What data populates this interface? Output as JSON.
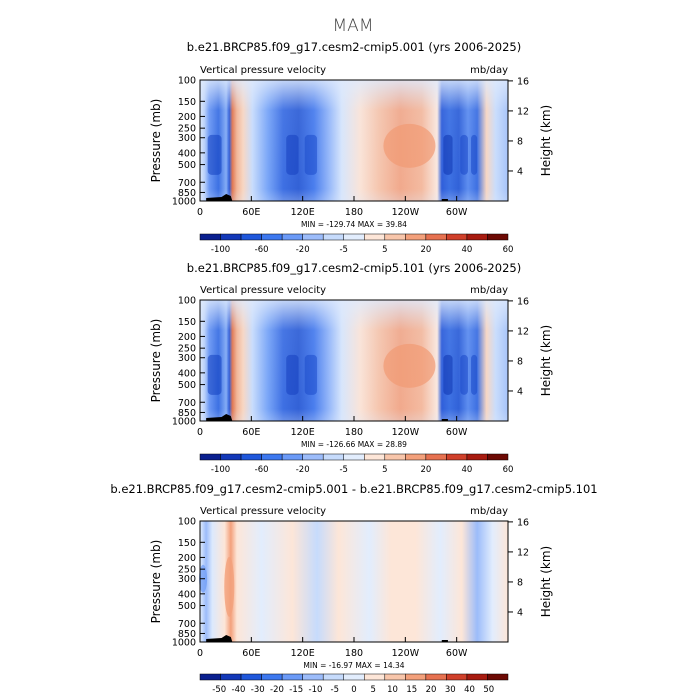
{
  "figure": {
    "title": "MAM"
  },
  "chart_data": [
    {
      "type": "heatmap",
      "title": "b.e21.BRCP85.f09_g17.cesm2-cmip5.001 (yrs 2006-2025)",
      "left_label": "Vertical pressure velocity",
      "right_label": "mb/day",
      "ylabel": "Pressure (mb)",
      "ylabel_right": "Height (km)",
      "x_ticks": [
        "0",
        "60E",
        "120E",
        "180",
        "120W",
        "60W"
      ],
      "y_ticks": [
        "100",
        "150",
        "200",
        "250",
        "300",
        "400",
        "500",
        "700",
        "850",
        "1000"
      ],
      "y_right_ticks": [
        "16",
        "12",
        "8",
        "4"
      ],
      "stats": "MIN = -129.74   MAX =  39.84",
      "colorbar_labels": [
        "-100",
        "-60",
        "-20",
        "-5",
        "5",
        "20",
        "40",
        "60"
      ],
      "colorbar_colors": [
        "#0a1f8f",
        "#1238b8",
        "#1f57db",
        "#3d78ef",
        "#6b9af7",
        "#9cbcfa",
        "#c6dbfc",
        "#e2edfd",
        "#fde6d8",
        "#f8c6ab",
        "#f3a07b",
        "#e67150",
        "#d0402a",
        "#a81b10",
        "#6d0904"
      ],
      "data_ranges": {
        "min": -129.74,
        "max": 39.84
      }
    },
    {
      "type": "heatmap",
      "title": "b.e21.BRCP85.f09_g17.cesm2-cmip5.101 (yrs 2006-2025)",
      "left_label": "Vertical pressure velocity",
      "right_label": "mb/day",
      "ylabel": "Pressure (mb)",
      "ylabel_right": "Height (km)",
      "x_ticks": [
        "0",
        "60E",
        "120E",
        "180",
        "120W",
        "60W"
      ],
      "y_ticks": [
        "100",
        "150",
        "200",
        "250",
        "300",
        "400",
        "500",
        "700",
        "850",
        "1000"
      ],
      "y_right_ticks": [
        "16",
        "12",
        "8",
        "4"
      ],
      "stats": "MIN = -126.66   MAX =  28.89",
      "colorbar_labels": [
        "-100",
        "-60",
        "-20",
        "-5",
        "5",
        "20",
        "40",
        "60"
      ],
      "colorbar_colors": [
        "#0a1f8f",
        "#1238b8",
        "#1f57db",
        "#3d78ef",
        "#6b9af7",
        "#9cbcfa",
        "#c6dbfc",
        "#e2edfd",
        "#fde6d8",
        "#f8c6ab",
        "#f3a07b",
        "#e67150",
        "#d0402a",
        "#a81b10",
        "#6d0904"
      ],
      "data_ranges": {
        "min": -126.66,
        "max": 28.89
      }
    },
    {
      "type": "heatmap",
      "title": "b.e21.BRCP85.f09_g17.cesm2-cmip5.001 - b.e21.BRCP85.f09_g17.cesm2-cmip5.101",
      "left_label": "Vertical pressure velocity",
      "right_label": "mb/day",
      "ylabel": "Pressure (mb)",
      "ylabel_right": "Height (km)",
      "x_ticks": [
        "0",
        "60E",
        "120E",
        "180",
        "120W",
        "60W"
      ],
      "y_ticks": [
        "100",
        "150",
        "200",
        "250",
        "300",
        "400",
        "500",
        "700",
        "850",
        "1000"
      ],
      "y_right_ticks": [
        "16",
        "12",
        "8",
        "4"
      ],
      "stats": "MIN = -16.97   MAX =  14.34",
      "colorbar_labels": [
        "-50",
        "-40",
        "-30",
        "-20",
        "-15",
        "-10",
        "-5",
        "0",
        "5",
        "10",
        "15",
        "20",
        "30",
        "40",
        "50"
      ],
      "colorbar_colors": [
        "#0a1f8f",
        "#1238b8",
        "#1f57db",
        "#3d78ef",
        "#6b9af7",
        "#9cbcfa",
        "#c6dbfc",
        "#e2edfd",
        "#fde6d8",
        "#f8c6ab",
        "#f3a07b",
        "#e67150",
        "#d0402a",
        "#a81b10",
        "#6d0904"
      ],
      "data_ranges": {
        "min": -16.97,
        "max": 14.34
      }
    }
  ]
}
